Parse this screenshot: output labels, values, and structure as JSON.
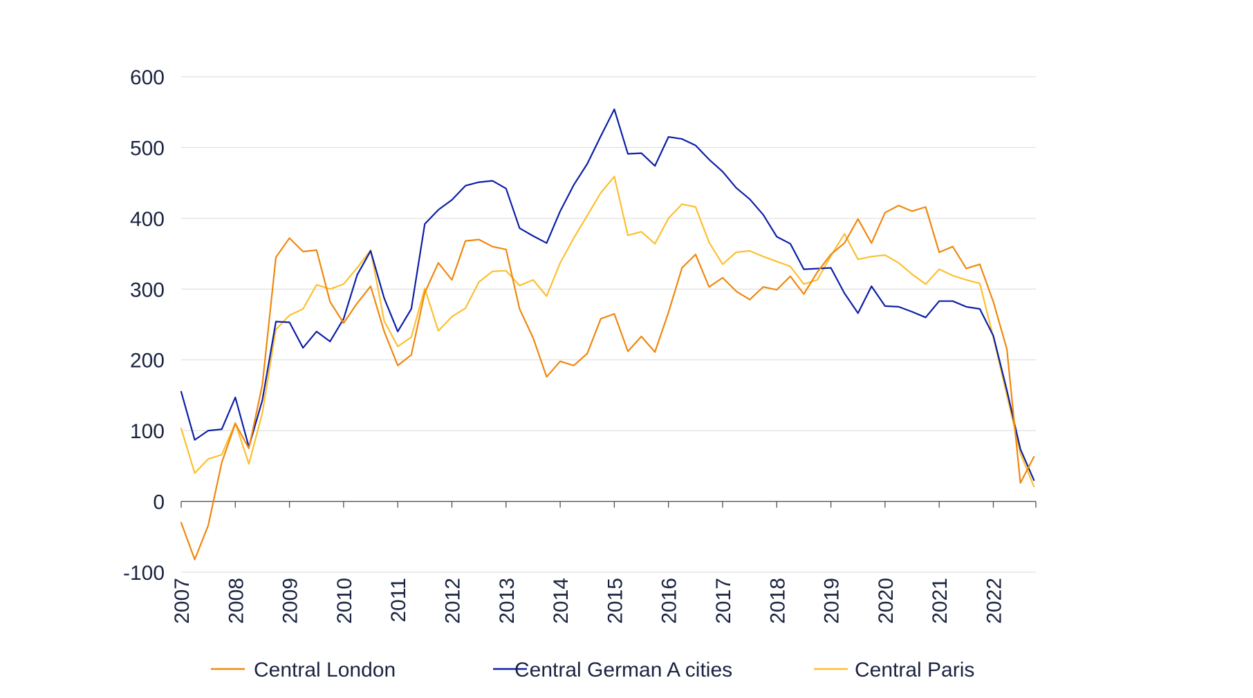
{
  "chart_data": {
    "type": "line",
    "title": "",
    "xlabel": "",
    "ylabel": "",
    "x_tick_labels": [
      "2007",
      "2008",
      "2009",
      "2010",
      "2011",
      "2012",
      "2013",
      "2014",
      "2015",
      "2016",
      "2017",
      "2018",
      "2019",
      "2020",
      "2021",
      "2022"
    ],
    "y_tick_labels": [
      "600",
      "500",
      "400",
      "300",
      "200",
      "100",
      "0",
      "-100"
    ],
    "y_ticks": [
      600,
      500,
      400,
      300,
      200,
      100,
      0,
      -100
    ],
    "ylim": [
      -100,
      600
    ],
    "xlim": [
      2007.0,
      2022.75
    ],
    "grid": true,
    "legend_position": "bottom",
    "x": [
      2007.0,
      2007.25,
      2007.5,
      2007.75,
      2008.0,
      2008.25,
      2008.5,
      2008.75,
      2009.0,
      2009.25,
      2009.5,
      2009.75,
      2010.0,
      2010.25,
      2010.5,
      2010.75,
      2011.0,
      2011.25,
      2011.5,
      2011.75,
      2012.0,
      2012.25,
      2012.5,
      2012.75,
      2013.0,
      2013.25,
      2013.5,
      2013.75,
      2014.0,
      2014.25,
      2014.5,
      2014.75,
      2015.0,
      2015.25,
      2015.5,
      2015.75,
      2016.0,
      2016.25,
      2016.5,
      2016.75,
      2017.0,
      2017.25,
      2017.5,
      2017.75,
      2018.0,
      2018.25,
      2018.5,
      2018.75,
      2019.0,
      2019.25,
      2019.5,
      2019.75,
      2020.0,
      2020.25,
      2020.5,
      2020.75,
      2021.0,
      2021.25,
      2021.5,
      2021.75,
      2022.0,
      2022.25,
      2022.5,
      2022.75
    ],
    "series": [
      {
        "name": "Central London",
        "color": "#f0870c",
        "values": [
          -30,
          -82,
          -34,
          55,
          110,
          75,
          165,
          345,
          372,
          353,
          355,
          282,
          252,
          280,
          304,
          240,
          192,
          207,
          295,
          337,
          313,
          368,
          370,
          360,
          356,
          272,
          231,
          176,
          198,
          192,
          209,
          258,
          265,
          212,
          233,
          211,
          267,
          330,
          349,
          303,
          316,
          297,
          285,
          303,
          299,
          318,
          293,
          324,
          349,
          365,
          399,
          365,
          408,
          418,
          410,
          416,
          352,
          360,
          329,
          335,
          282,
          215,
          26,
          63
        ]
      },
      {
        "name": "Central German A cities",
        "color": "#0a1ea6",
        "values": [
          155,
          87,
          100,
          102,
          147,
          77,
          143,
          254,
          253,
          217,
          240,
          226,
          258,
          320,
          354,
          287,
          240,
          272,
          392,
          412,
          426,
          446,
          451,
          453,
          442,
          386,
          375,
          365,
          410,
          447,
          477,
          516,
          554,
          491,
          492,
          474,
          515,
          512,
          503,
          483,
          466,
          443,
          427,
          405,
          374,
          364,
          328,
          329,
          330,
          294,
          266,
          304,
          276,
          275,
          268,
          260,
          283,
          283,
          275,
          272,
          234,
          157,
          74,
          30
        ]
      },
      {
        "name": "Central Paris",
        "color": "#fdbf2d",
        "values": [
          103,
          40,
          60,
          66,
          111,
          53,
          125,
          243,
          263,
          272,
          306,
          300,
          307,
          330,
          355,
          255,
          219,
          232,
          301,
          241,
          261,
          273,
          310,
          325,
          326,
          305,
          313,
          290,
          337,
          372,
          404,
          436,
          459,
          376,
          381,
          364,
          400,
          420,
          416,
          366,
          335,
          352,
          354,
          346,
          339,
          332,
          307,
          313,
          347,
          378,
          342,
          346,
          348,
          337,
          321,
          307,
          328,
          319,
          313,
          308,
          232,
          150,
          68,
          21
        ]
      }
    ]
  }
}
